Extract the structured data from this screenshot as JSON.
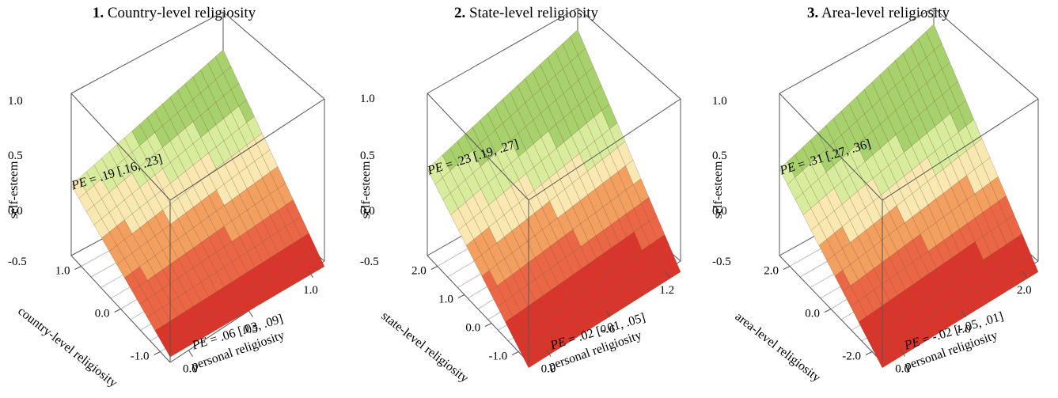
{
  "chart_data": [
    {
      "type": "surface3d",
      "title_number": "1.",
      "title_text": "Country-level religiosity",
      "zlabel": "self-esteem",
      "xlabel": "personal religiosity",
      "ylabel": "country-level religiosity",
      "z_ticks": [
        "-0.5",
        "0.0",
        "0.5",
        "1.0"
      ],
      "x_ticks": [
        "0.0",
        "0.5",
        "1.0"
      ],
      "y_ticks": [
        "-1.0",
        "0.0",
        "1.0"
      ],
      "zlim": [
        -0.5,
        1.0
      ],
      "xlim": [
        -0.2,
        1.1
      ],
      "ylim": [
        -1.4,
        1.6
      ],
      "annotation_back": "PE = .19 [.16, .23]",
      "annotation_front": "PE = .06 [.03, .09]",
      "surface": {
        "z_low_front_right": -0.55,
        "z_back_left": 0.15,
        "z_back_right": 0.65,
        "z_front_left": -0.45
      },
      "color_bands": [
        "#d9352b",
        "#ea6644",
        "#f29f5f",
        "#f9e8b2",
        "#d8ec9e",
        "#a6d16c"
      ]
    },
    {
      "type": "surface3d",
      "title_number": "2.",
      "title_text": "State-level religiosity",
      "zlabel": "self-esteem",
      "xlabel": "personal religiosity",
      "ylabel": "state-level religiosity",
      "z_ticks": [
        "-0.5",
        "0.0",
        "0.5",
        "1.0"
      ],
      "x_ticks": [
        "0.0",
        "0.6",
        "1.2"
      ],
      "y_ticks": [
        "-1.0",
        "0.0",
        "1.0",
        "2.0"
      ],
      "zlim": [
        -0.5,
        1.0
      ],
      "xlim": [
        0.0,
        1.4
      ],
      "ylim": [
        -1.4,
        2.3
      ],
      "annotation_back": "PE = .23 [.19, .27]",
      "annotation_front": "PE = .02 [-.01, .05]",
      "surface": {
        "z_low_front_right": -0.6,
        "z_back_left": 0.3,
        "z_back_right": 0.8,
        "z_front_left": -0.55
      },
      "color_bands": [
        "#d9352b",
        "#ea6644",
        "#f29f5f",
        "#f9e8b2",
        "#d8ec9e",
        "#a6d16c"
      ]
    },
    {
      "type": "surface3d",
      "title_number": "3.",
      "title_text": "Area-level religiosity",
      "zlabel": "self-esteem",
      "xlabel": "personal religiosity",
      "ylabel": "area-level religiosity",
      "z_ticks": [
        "-0.5",
        "0.0",
        "0.5",
        "1.0"
      ],
      "x_ticks": [
        "0.0",
        "1.0",
        "2.0"
      ],
      "y_ticks": [
        "-2.0",
        "0.0",
        "2.0"
      ],
      "zlim": [
        -0.5,
        1.0
      ],
      "xlim": [
        -0.2,
        2.2
      ],
      "ylim": [
        -2.4,
        2.6
      ],
      "annotation_back": "PE = .31 [.27, .36]",
      "annotation_front": "PE = -.02 [-.05, .01]",
      "surface": {
        "z_low_front_right": -0.6,
        "z_back_left": 0.3,
        "z_back_right": 0.85,
        "z_front_left": -0.55
      },
      "color_bands": [
        "#d9352b",
        "#ea6644",
        "#f29f5f",
        "#f9e8b2",
        "#d8ec9e",
        "#a6d16c"
      ]
    }
  ]
}
